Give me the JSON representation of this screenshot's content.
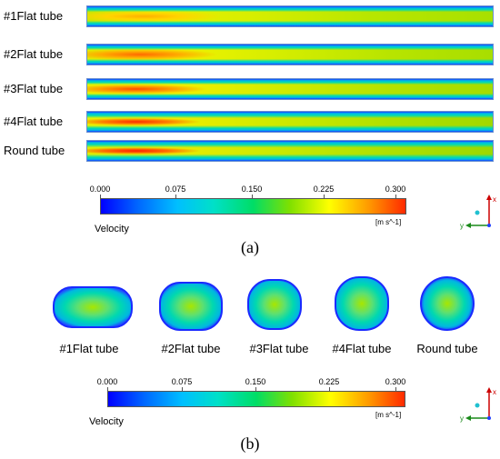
{
  "panel_a": {
    "tubes": [
      {
        "label": "#1Flat tube"
      },
      {
        "label": "#2Flat tube"
      },
      {
        "label": "#3Flat tube"
      },
      {
        "label": "#4Flat tube"
      },
      {
        "label": "Round tube"
      }
    ],
    "colorbar": {
      "ticks": [
        "0.000",
        "0.075",
        "0.150",
        "0.225",
        "0.300"
      ],
      "title": "Velocity",
      "unit": "[m s^-1]"
    },
    "caption": "(a)",
    "axis": {
      "x": "x",
      "y": "y"
    }
  },
  "panel_b": {
    "sections": [
      {
        "label": "#1Flat tube"
      },
      {
        "label": "#2Flat tube"
      },
      {
        "label": "#3Flat tube"
      },
      {
        "label": "#4Flat tube"
      },
      {
        "label": "Round tube"
      }
    ],
    "colorbar": {
      "ticks": [
        "0.000",
        "0.075",
        "0.150",
        "0.225",
        "0.300"
      ],
      "title": "Velocity",
      "unit": "[m s^-1]"
    },
    "caption": "(b)",
    "axis": {
      "x": "x",
      "y": "y"
    }
  },
  "colors": {
    "velocity_low": "#0000ff",
    "velocity_mid": "#00dd66",
    "velocity_high": "#ff2a00"
  }
}
